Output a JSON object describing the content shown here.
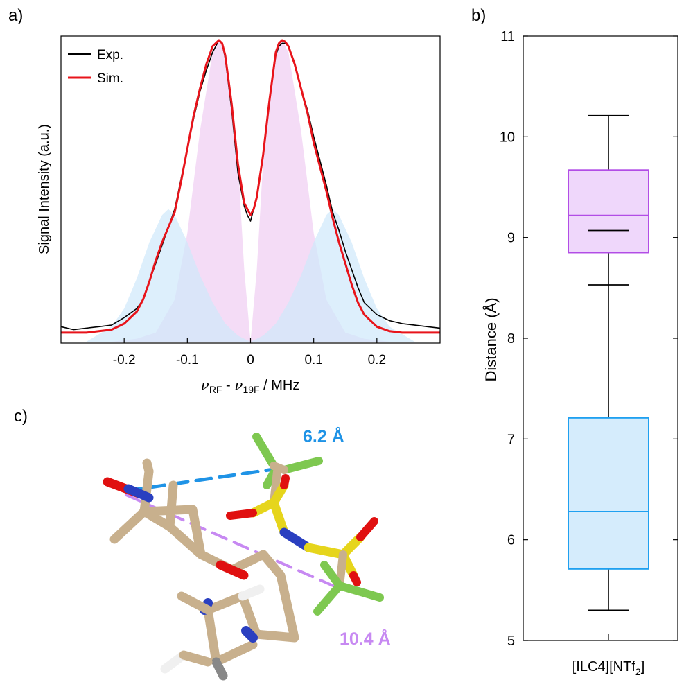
{
  "panels": {
    "a": "a)",
    "b": "b)",
    "c": "c)"
  },
  "colors": {
    "exp": "#000000",
    "sim": "#e8141b",
    "pink": "#f0d0f3",
    "blue": "#cfe8fb",
    "purple": "#b24de6",
    "box_blue": "#1fa0f0",
    "label_blue": "#1f93e6",
    "label_purple": "#c789f2"
  },
  "chart_data": [
    {
      "type": "line",
      "panel": "a",
      "ylabel": "Signal Intensity (a.u.)",
      "xlabel_parts": {
        "nu": "ν",
        "sub1": "RF",
        "minus": " - ",
        "sub2": "19F",
        "unit": " / MHz"
      },
      "xlim": [
        -0.3,
        0.3
      ],
      "ylim": [
        0,
        1
      ],
      "xticks": [
        -0.2,
        -0.1,
        0,
        0.1,
        0.2
      ],
      "xtick_labels": [
        "-0.2",
        "-0.1",
        "0",
        "0.1",
        "0.2"
      ],
      "legend": {
        "position": "top-left"
      },
      "series": [
        {
          "name": "Exp.",
          "x": [
            -0.3,
            -0.28,
            -0.26,
            -0.24,
            -0.22,
            -0.2,
            -0.18,
            -0.17,
            -0.16,
            -0.15,
            -0.14,
            -0.13,
            -0.12,
            -0.11,
            -0.1,
            -0.09,
            -0.08,
            -0.07,
            -0.06,
            -0.05,
            -0.045,
            -0.04,
            -0.03,
            -0.02,
            -0.01,
            -0.005,
            0.0,
            0.005,
            0.01,
            0.02,
            0.03,
            0.04,
            0.045,
            0.05,
            0.055,
            0.06,
            0.07,
            0.08,
            0.09,
            0.1,
            0.11,
            0.12,
            0.13,
            0.14,
            0.15,
            0.16,
            0.17,
            0.18,
            0.2,
            0.22,
            0.24,
            0.26,
            0.28,
            0.3
          ],
          "y": [
            0.05,
            0.04,
            0.045,
            0.05,
            0.055,
            0.08,
            0.11,
            0.14,
            0.2,
            0.26,
            0.32,
            0.38,
            0.44,
            0.54,
            0.64,
            0.74,
            0.83,
            0.9,
            0.96,
            1.0,
            0.99,
            0.94,
            0.77,
            0.56,
            0.45,
            0.42,
            0.4,
            0.44,
            0.48,
            0.62,
            0.8,
            0.95,
            0.98,
            0.99,
            0.99,
            0.98,
            0.92,
            0.84,
            0.77,
            0.68,
            0.6,
            0.52,
            0.43,
            0.37,
            0.3,
            0.24,
            0.18,
            0.13,
            0.09,
            0.07,
            0.06,
            0.055,
            0.05,
            0.045
          ]
        },
        {
          "name": "Sim.",
          "x": [
            -0.3,
            -0.28,
            -0.26,
            -0.24,
            -0.22,
            -0.2,
            -0.18,
            -0.17,
            -0.16,
            -0.15,
            -0.14,
            -0.13,
            -0.12,
            -0.11,
            -0.1,
            -0.09,
            -0.08,
            -0.07,
            -0.06,
            -0.05,
            -0.045,
            -0.04,
            -0.03,
            -0.02,
            -0.01,
            -0.005,
            0.0,
            0.005,
            0.01,
            0.02,
            0.03,
            0.04,
            0.045,
            0.05,
            0.055,
            0.06,
            0.07,
            0.08,
            0.09,
            0.1,
            0.11,
            0.12,
            0.13,
            0.14,
            0.15,
            0.16,
            0.17,
            0.18,
            0.2,
            0.22,
            0.24,
            0.26,
            0.28,
            0.3
          ],
          "y": [
            0.03,
            0.03,
            0.03,
            0.035,
            0.04,
            0.06,
            0.1,
            0.14,
            0.2,
            0.27,
            0.33,
            0.38,
            0.43,
            0.53,
            0.64,
            0.75,
            0.84,
            0.92,
            0.98,
            1.0,
            0.99,
            0.95,
            0.79,
            0.59,
            0.46,
            0.44,
            0.42,
            0.44,
            0.48,
            0.62,
            0.8,
            0.96,
            0.99,
            1.0,
            0.995,
            0.98,
            0.92,
            0.84,
            0.76,
            0.66,
            0.58,
            0.5,
            0.41,
            0.33,
            0.26,
            0.19,
            0.13,
            0.09,
            0.05,
            0.035,
            0.03,
            0.03,
            0.03,
            0.03
          ]
        },
        {
          "name": "",
          "fill": "pink",
          "x": [
            -0.22,
            -0.18,
            -0.15,
            -0.12,
            -0.1,
            -0.08,
            -0.06,
            -0.05,
            -0.04,
            -0.02,
            -0.01,
            0.0,
            0.01,
            0.02,
            0.04,
            0.05,
            0.06,
            0.08,
            0.1,
            0.12,
            0.15,
            0.18,
            0.22
          ],
          "y": [
            0.0,
            0.01,
            0.03,
            0.14,
            0.36,
            0.7,
            0.96,
            1.0,
            0.96,
            0.6,
            0.24,
            0.0,
            0.24,
            0.6,
            0.96,
            1.0,
            0.96,
            0.7,
            0.36,
            0.14,
            0.03,
            0.01,
            0.0
          ]
        },
        {
          "name": "",
          "fill": "blue",
          "x": [
            -0.26,
            -0.22,
            -0.2,
            -0.18,
            -0.16,
            -0.14,
            -0.13,
            -0.12,
            -0.1,
            -0.08,
            -0.06,
            -0.04,
            -0.02,
            0.0,
            0.02,
            0.04,
            0.06,
            0.08,
            0.1,
            0.12,
            0.13,
            0.14,
            0.16,
            0.18,
            0.2,
            0.22,
            0.26
          ],
          "y": [
            0.0,
            0.05,
            0.11,
            0.21,
            0.33,
            0.42,
            0.44,
            0.42,
            0.33,
            0.22,
            0.13,
            0.06,
            0.02,
            0.0,
            0.02,
            0.06,
            0.13,
            0.22,
            0.33,
            0.42,
            0.44,
            0.42,
            0.33,
            0.21,
            0.11,
            0.05,
            0.0
          ]
        }
      ]
    },
    {
      "type": "box",
      "panel": "b",
      "ylabel": "Distance (Å)",
      "ylim": [
        5,
        11
      ],
      "yticks": [
        5,
        6,
        7,
        8,
        9,
        10,
        11
      ],
      "ytick_labels": [
        "5",
        "6",
        "7",
        "8",
        "9",
        "10",
        "11"
      ],
      "category_parts": {
        "main": "[ILC4][NTf",
        "sub": "2",
        "end": "]"
      },
      "whiskers": {
        "min": 5.3,
        "max": 10.21,
        "inner_caps": [
          8.53,
          9.07
        ]
      },
      "boxes": [
        {
          "color": "purple",
          "q1": 8.85,
          "median": 9.22,
          "q3": 9.67
        },
        {
          "color": "blue",
          "q1": 5.71,
          "median": 6.28,
          "q3": 7.21
        }
      ]
    }
  ],
  "molecule": {
    "label_short": "6.2 Å",
    "label_long": "10.4 Å"
  }
}
